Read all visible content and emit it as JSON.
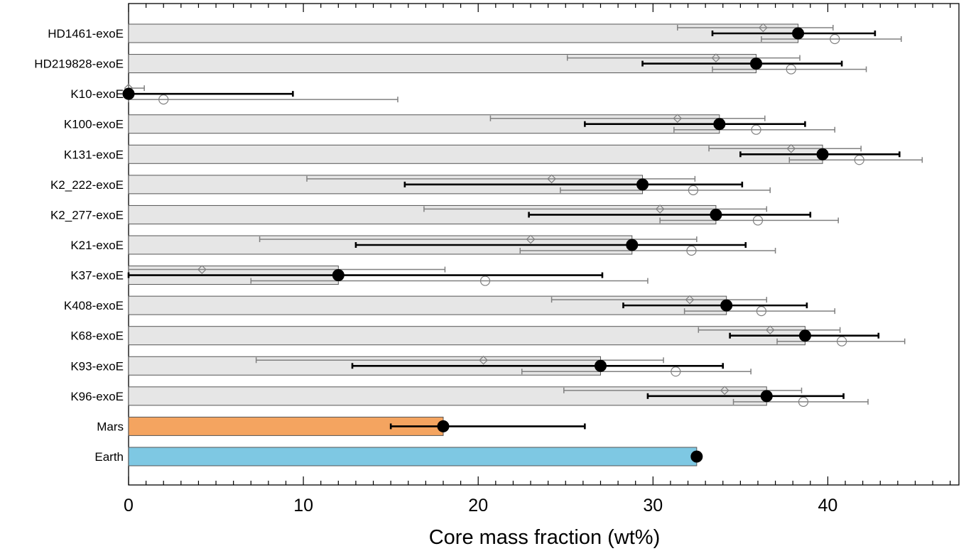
{
  "chart_data": {
    "type": "bar",
    "orientation": "horizontal",
    "xlabel": "Core mass fraction (wt%)",
    "ylabel": "",
    "xlim": [
      0,
      47.5
    ],
    "x_ticks": [
      0,
      10,
      20,
      30,
      40
    ],
    "x_minor_step": 1,
    "grid": false,
    "categories": [
      "HD1461-exoE",
      "HD219828-exoE",
      "K10-exoE",
      "K100-exoE",
      "K131-exoE",
      "K2_222-exoE",
      "K2_277-exoE",
      "K21-exoE",
      "K37-exoE",
      "K408-exoE",
      "K68-exoE",
      "K93-exoE",
      "K96-exoE",
      "Mars",
      "Earth"
    ],
    "bar_colors": [
      "#e6e6e6",
      "#e6e6e6",
      "#e6e6e6",
      "#e6e6e6",
      "#e6e6e6",
      "#e6e6e6",
      "#e6e6e6",
      "#e6e6e6",
      "#e6e6e6",
      "#e6e6e6",
      "#e6e6e6",
      "#e6e6e6",
      "#e6e6e6",
      "#f4a460",
      "#7ec8e3"
    ],
    "series": [
      {
        "marker": "filled-circle",
        "color": "#000000",
        "values": [
          38.3,
          35.9,
          0.0,
          33.8,
          39.7,
          29.4,
          33.6,
          28.8,
          12.0,
          34.2,
          38.7,
          27.0,
          36.5,
          18.0,
          32.5
        ],
        "err_low": [
          33.4,
          29.4,
          0.0,
          26.1,
          35.0,
          15.8,
          22.9,
          13.0,
          0.0,
          28.3,
          34.4,
          12.8,
          29.7,
          15.0,
          32.5
        ],
        "err_high": [
          42.7,
          40.8,
          9.4,
          38.7,
          44.1,
          35.1,
          39.0,
          35.3,
          27.1,
          38.8,
          42.9,
          34.0,
          40.9,
          26.1,
          32.5
        ]
      },
      {
        "marker": "open-diamond",
        "color": "#808080",
        "values": [
          36.3,
          33.6,
          0.0,
          31.4,
          37.9,
          24.2,
          30.4,
          23.0,
          4.2,
          32.1,
          36.7,
          20.3,
          34.1,
          null,
          null
        ],
        "err_low": [
          31.4,
          25.1,
          0.0,
          20.7,
          33.2,
          10.2,
          16.9,
          7.5,
          0.0,
          24.2,
          32.6,
          7.3,
          24.9,
          null,
          null
        ],
        "err_high": [
          40.3,
          38.4,
          0.9,
          36.4,
          41.9,
          32.4,
          36.5,
          32.5,
          18.1,
          36.5,
          40.7,
          30.6,
          38.5,
          null,
          null
        ]
      },
      {
        "marker": "open-circle",
        "color": "#808080",
        "values": [
          40.4,
          37.9,
          2.0,
          35.9,
          41.8,
          32.3,
          36.0,
          32.2,
          20.4,
          36.2,
          40.8,
          31.3,
          38.6,
          null,
          null
        ],
        "err_low": [
          36.2,
          33.4,
          0.0,
          31.2,
          37.8,
          24.7,
          30.4,
          22.4,
          7.0,
          31.8,
          37.1,
          22.5,
          34.6,
          null,
          null
        ],
        "err_high": [
          44.2,
          42.2,
          15.4,
          40.4,
          45.4,
          36.7,
          40.6,
          37.0,
          29.7,
          40.4,
          44.4,
          35.6,
          42.3,
          null,
          null
        ]
      }
    ]
  }
}
